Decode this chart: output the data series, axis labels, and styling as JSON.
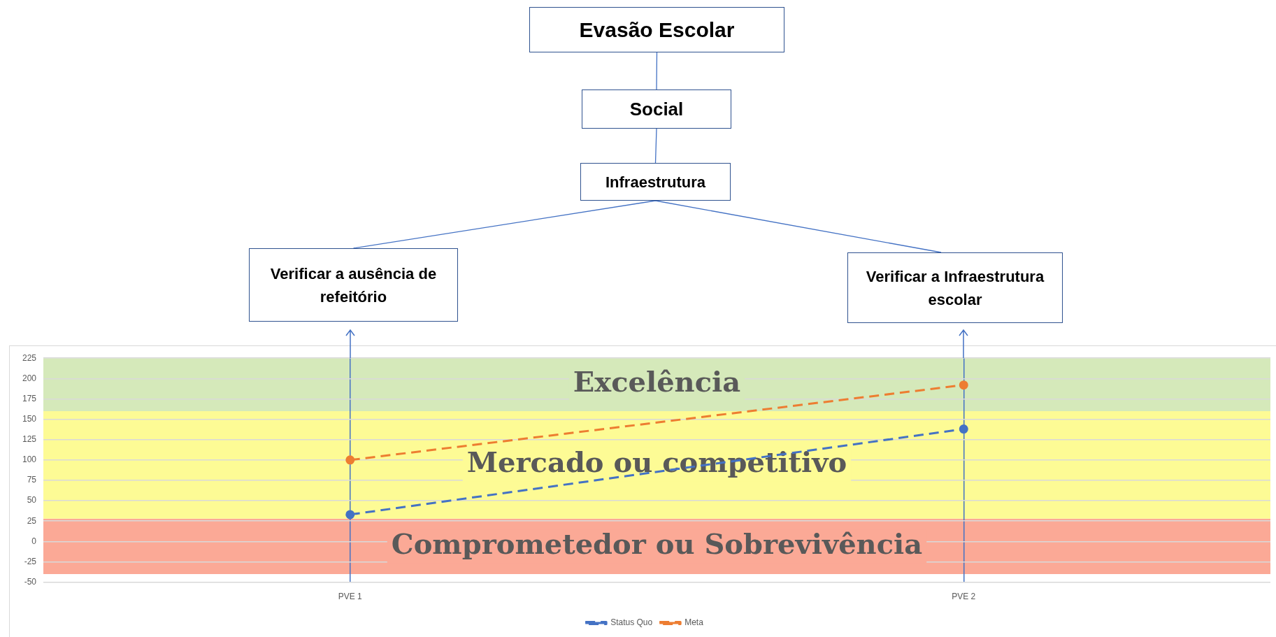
{
  "chart_data": {
    "type": "line",
    "annotations": [
      "Evasão Escolar",
      "Social",
      "Infraestrutura",
      "Verificar a ausência de refeitório",
      "Verificar a Infraestrutura escolar"
    ],
    "categories": [
      "PVE 1",
      "PVE 2"
    ],
    "series": [
      {
        "name": "Status Quo",
        "color": "#4472c4",
        "values": [
          33,
          138
        ],
        "line_style": "dashed"
      },
      {
        "name": "Meta",
        "color": "#ed7d31",
        "values": [
          100,
          192
        ],
        "line_style": "dashed"
      }
    ],
    "ylim": [
      -50,
      225
    ],
    "yticks": [
      -50,
      -25,
      0,
      25,
      50,
      75,
      100,
      125,
      150,
      175,
      200,
      225
    ],
    "grid": true,
    "legend": "bottom",
    "marker": "circle",
    "bands": [
      {
        "axis": "y",
        "from": -40,
        "to": 28,
        "label": "Comprometedor ou Sobrevivência",
        "color": "#fba996"
      },
      {
        "axis": "y",
        "from": 28,
        "to": 160,
        "label": "Mercado ou competitivo",
        "color": "#fdfb95"
      },
      {
        "axis": "y",
        "from": 160,
        "to": 225,
        "label": "Excelência",
        "color": "#d5e9ba"
      }
    ]
  }
}
